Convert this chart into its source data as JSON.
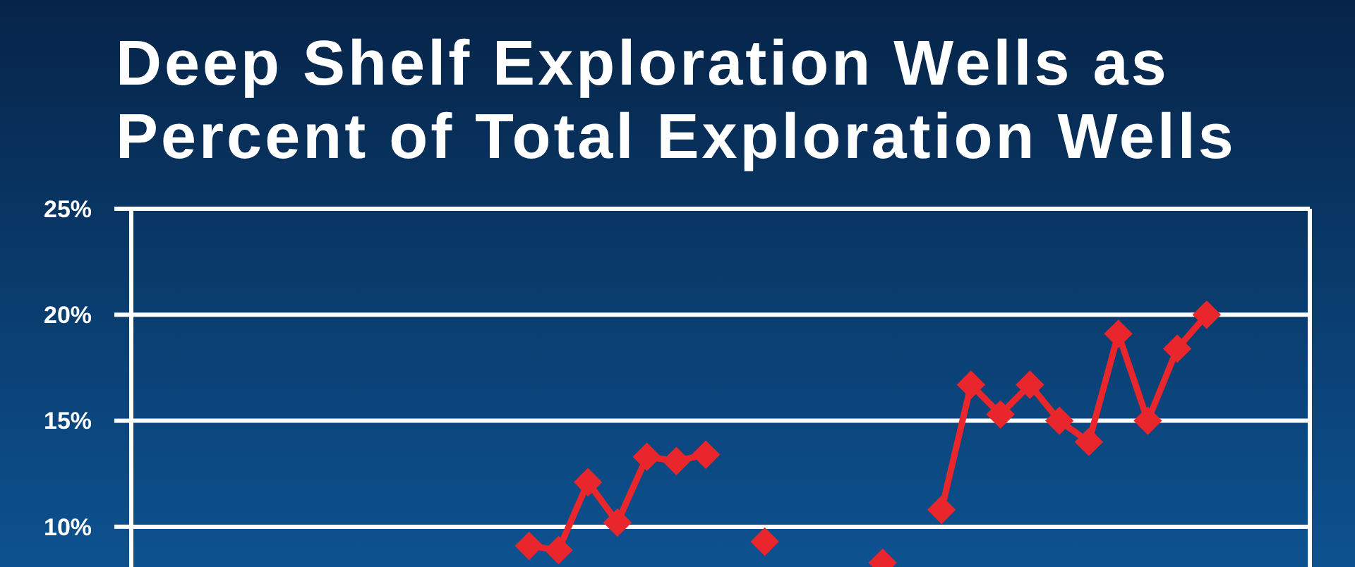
{
  "chart_data": {
    "type": "line",
    "title": "Deep Shelf Exploration Wells as\nPercent of Total Exploration Wells",
    "categories": [
      null,
      null,
      null,
      null,
      null,
      null,
      null,
      null,
      null,
      null,
      null,
      null,
      null,
      null,
      null,
      null,
      null,
      null,
      null,
      null,
      null,
      null,
      null,
      null,
      null,
      null,
      null,
      null,
      null,
      null,
      null,
      null,
      null,
      null,
      null,
      null,
      null,
      null,
      null,
      null
    ],
    "series": [
      {
        "color": "#e8262b",
        "values": [
          null,
          null,
          null,
          null,
          null,
          null,
          null,
          null,
          null,
          null,
          null,
          null,
          null,
          9.1,
          8.9,
          12.1,
          10.2,
          13.3,
          13.1,
          13.4,
          null,
          9.3,
          null,
          null,
          null,
          8.3,
          null,
          10.8,
          16.7,
          15.3,
          16.7,
          15.0,
          14.0,
          19.1,
          15.0,
          18.4,
          20.0,
          null,
          null,
          null
        ]
      }
    ],
    "ylim": [
      8.1,
      25
    ],
    "yticks": [
      {
        "value": 10,
        "label": "10%"
      },
      {
        "value": 15,
        "label": "15%"
      },
      {
        "value": 20,
        "label": "20%"
      },
      {
        "value": 25,
        "label": "25%"
      }
    ],
    "grid": "y",
    "marker": "diamond",
    "line_style": "solid",
    "tick_labels": "y"
  }
}
